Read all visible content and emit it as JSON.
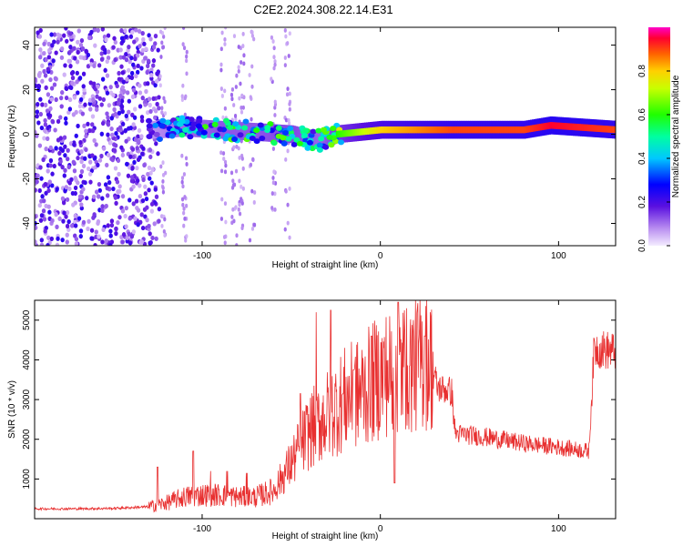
{
  "title": "C2E2.2024.308.22.14.E31",
  "colors": {
    "snr_line": "#e83030",
    "axis": "#000000",
    "background": "#ffffff"
  },
  "chart_data": [
    {
      "type": "heatmap",
      "title": "C2E2.2024.308.22.14.E31",
      "xlabel": "Height of straight line (km)",
      "ylabel": "Frequency (Hz)",
      "xlim": [
        -194,
        132
      ],
      "ylim": [
        -50,
        48
      ],
      "xticks": [
        -100,
        0,
        100
      ],
      "yticks": [
        -40,
        -20,
        0,
        20,
        40
      ],
      "xtick_labels": [
        "-100",
        "0",
        "100"
      ],
      "ytick_labels": [
        "-40",
        "-20",
        "0",
        "20",
        "40"
      ],
      "grid": false,
      "colorbar": {
        "label": "Normalized spectral amplitude",
        "range": [
          0,
          1
        ],
        "ticks": [
          0.0,
          0.2,
          0.4,
          0.6,
          0.8
        ],
        "tick_labels": [
          "0.0",
          "0.2",
          "0.4",
          "0.6",
          "0.8"
        ],
        "colormap": "rainbow (light violet → blue → cyan → green → yellow → orange → red → magenta)"
      },
      "ridge": [
        {
          "x": -194,
          "freq_hz": 1,
          "amplitude": 0.1
        },
        {
          "x": -128,
          "freq_hz": 2,
          "amplitude": 0.3
        },
        {
          "x": -110,
          "freq_hz": 3,
          "amplitude": 0.45
        },
        {
          "x": -90,
          "freq_hz": 2,
          "amplitude": 0.5
        },
        {
          "x": -70,
          "freq_hz": 1,
          "amplitude": 0.5
        },
        {
          "x": -50,
          "freq_hz": 0,
          "amplitude": 0.55
        },
        {
          "x": -35,
          "freq_hz": -3,
          "amplitude": 0.45
        },
        {
          "x": -25,
          "freq_hz": 0,
          "amplitude": 0.6
        },
        {
          "x": 0,
          "freq_hz": 2,
          "amplitude": 0.8
        },
        {
          "x": 40,
          "freq_hz": 2,
          "amplitude": 0.9
        },
        {
          "x": 80,
          "freq_hz": 2,
          "amplitude": 0.9
        },
        {
          "x": 95,
          "freq_hz": 4,
          "amplitude": 0.95
        },
        {
          "x": 132,
          "freq_hz": 2,
          "amplitude": 0.9
        }
      ]
    },
    {
      "type": "line",
      "title": "",
      "xlabel": "Height of straight line (km)",
      "ylabel": "SNR (10 * v/v)",
      "xlim": [
        -194,
        132
      ],
      "ylim": [
        0,
        5500
      ],
      "xticks": [
        -100,
        0,
        100
      ],
      "yticks": [
        1000,
        2000,
        3000,
        4000,
        5000
      ],
      "xtick_labels": [
        "-100",
        "0",
        "100"
      ],
      "ytick_labels": [
        "1000",
        "2000",
        "3000",
        "4000",
        "5000"
      ],
      "grid": false,
      "series": [
        {
          "points": [
            {
              "x": -194,
              "y": 250
            },
            {
              "x": -170,
              "y": 250
            },
            {
              "x": -150,
              "y": 260
            },
            {
              "x": -130,
              "y": 300
            },
            {
              "x": -120,
              "y": 400
            },
            {
              "x": -110,
              "y": 550
            },
            {
              "x": -100,
              "y": 600
            },
            {
              "x": -90,
              "y": 600
            },
            {
              "x": -80,
              "y": 550
            },
            {
              "x": -70,
              "y": 550
            },
            {
              "x": -60,
              "y": 700
            },
            {
              "x": -50,
              "y": 1400
            },
            {
              "x": -40,
              "y": 2200
            },
            {
              "x": -30,
              "y": 2600
            },
            {
              "x": -20,
              "y": 3000
            },
            {
              "x": -10,
              "y": 3200
            },
            {
              "x": 0,
              "y": 3600
            },
            {
              "x": 10,
              "y": 3800
            },
            {
              "x": 20,
              "y": 3900
            },
            {
              "x": 28,
              "y": 4000
            },
            {
              "x": 32,
              "y": 3300
            },
            {
              "x": 40,
              "y": 3200
            },
            {
              "x": 42,
              "y": 2150
            },
            {
              "x": 60,
              "y": 2050
            },
            {
              "x": 80,
              "y": 1900
            },
            {
              "x": 100,
              "y": 1800
            },
            {
              "x": 117,
              "y": 1700
            },
            {
              "x": 120,
              "y": 4300
            },
            {
              "x": 132,
              "y": 4200
            }
          ],
          "spikes": [
            {
              "x": -125,
              "y": 1300
            },
            {
              "x": -105,
              "y": 1700
            },
            {
              "x": -95,
              "y": 1200
            },
            {
              "x": -86,
              "y": 1200
            },
            {
              "x": -75,
              "y": 1150
            },
            {
              "x": -45,
              "y": 3150
            },
            {
              "x": -36,
              "y": 5200
            },
            {
              "x": -28,
              "y": 5250
            },
            {
              "x": -15,
              "y": 3750
            },
            {
              "x": -5,
              "y": 4600
            },
            {
              "x": 5,
              "y": 5100
            },
            {
              "x": 10,
              "y": 5450
            },
            {
              "x": 15,
              "y": 5300
            },
            {
              "x": 8,
              "y": 900
            },
            {
              "x": 25,
              "y": 4600
            }
          ]
        }
      ]
    }
  ]
}
